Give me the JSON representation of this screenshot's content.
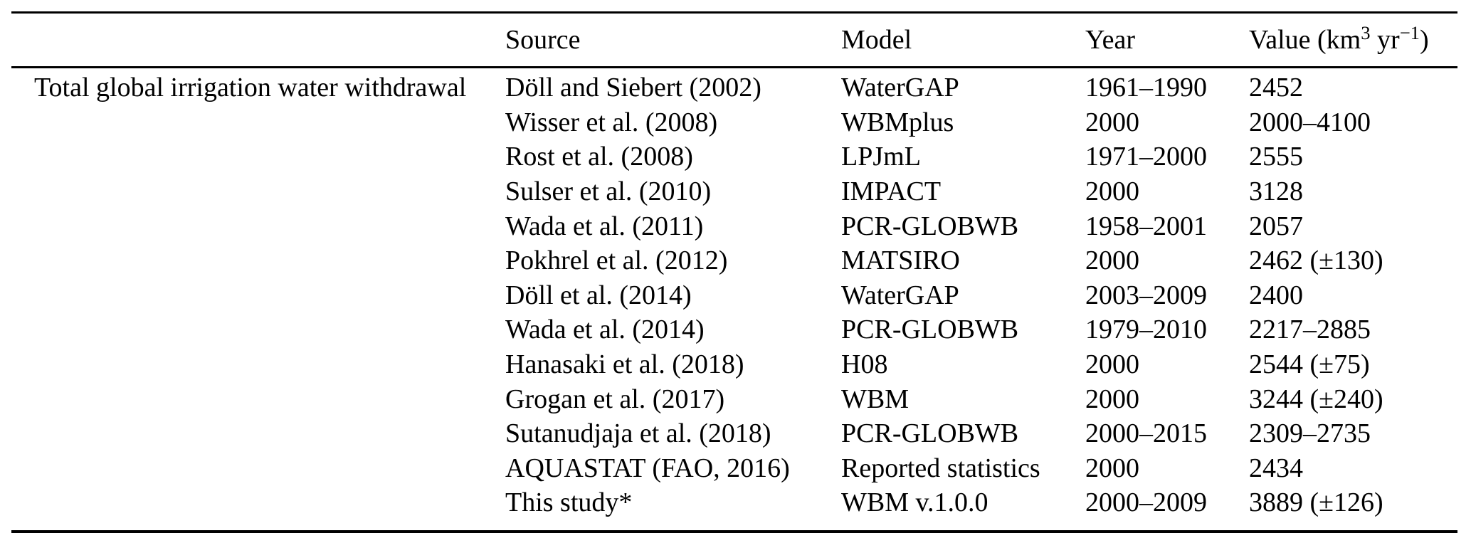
{
  "table": {
    "row_group_label": "Total global irrigation water withdrawal",
    "columns": {
      "label": "",
      "source": "Source",
      "model": "Model",
      "year": "Year"
    },
    "value_header": {
      "prefix": "Value (km",
      "exponent": "3",
      "mid": " yr",
      "neg_exponent": "−1",
      "suffix": ")"
    },
    "rows": [
      {
        "source": "Döll and Siebert (2002)",
        "model": "WaterGAP",
        "year": "1961–1990",
        "value": "2452"
      },
      {
        "source": "Wisser et al. (2008)",
        "model": "WBMplus",
        "year": "2000",
        "value": "2000–4100"
      },
      {
        "source": "Rost et al. (2008)",
        "model": "LPJmL",
        "year": "1971–2000",
        "value": "2555"
      },
      {
        "source": "Sulser et al. (2010)",
        "model": "IMPACT",
        "year": "2000",
        "value": "3128"
      },
      {
        "source": "Wada et al. (2011)",
        "model": "PCR-GLOBWB",
        "year": "1958–2001",
        "value": "2057"
      },
      {
        "source": "Pokhrel et al. (2012)",
        "model": "MATSIRO",
        "year": "2000",
        "value": "2462 (±130)"
      },
      {
        "source": "Döll et al. (2014)",
        "model": "WaterGAP",
        "year": "2003–2009",
        "value": "2400"
      },
      {
        "source": "Wada et al. (2014)",
        "model": "PCR-GLOBWB",
        "year": "1979–2010",
        "value": "2217–2885"
      },
      {
        "source": "Hanasaki et al. (2018)",
        "model": "H08",
        "year": "2000",
        "value": "2544 (±75)"
      },
      {
        "source": "Grogan et al. (2017)",
        "model": "WBM",
        "year": "2000",
        "value": "3244 (±240)"
      },
      {
        "source": "Sutanudjaja et al. (2018)",
        "model": "PCR-GLOBWB",
        "year": "2000–2015",
        "value": "2309–2735"
      },
      {
        "source": "AQUASTAT (FAO, 2016)",
        "model": "Reported statistics",
        "year": "2000",
        "value": "2434"
      },
      {
        "source": "This study*",
        "model": "WBM v.1.0.0",
        "year": "2000–2009",
        "value": "3889 (±126)"
      }
    ]
  }
}
